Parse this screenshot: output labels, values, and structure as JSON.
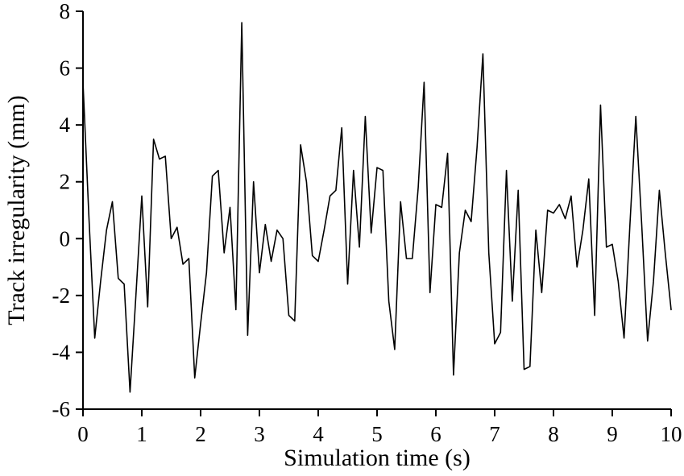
{
  "chart_data": {
    "type": "line",
    "title": "",
    "xlabel": "Simulation time (s)",
    "ylabel": "Track irregularity (mm)",
    "xlim": [
      0,
      10
    ],
    "ylim": [
      -6,
      8
    ],
    "xticks": [
      0,
      1,
      2,
      3,
      4,
      5,
      6,
      7,
      8,
      9,
      10
    ],
    "yticks": [
      -6,
      -4,
      -2,
      0,
      2,
      4,
      6,
      8
    ],
    "grid": false,
    "legend": null,
    "line_color": "#000000",
    "background_color": "#ffffff",
    "series": [
      {
        "name": "track-irregularity",
        "x_start": 0,
        "x_step": 0.1,
        "values": [
          5.5,
          0.8,
          -3.5,
          -1.5,
          0.3,
          1.3,
          -1.4,
          -1.6,
          -5.4,
          -2.0,
          1.5,
          -2.4,
          3.5,
          2.8,
          2.9,
          0.0,
          0.4,
          -0.9,
          -0.7,
          -4.9,
          -3.0,
          -1.2,
          2.2,
          2.4,
          -0.5,
          1.1,
          -2.5,
          7.6,
          -3.4,
          2.0,
          -1.2,
          0.5,
          -0.8,
          0.3,
          0.0,
          -2.7,
          -2.9,
          3.3,
          2.0,
          -0.6,
          -0.8,
          0.3,
          1.5,
          1.7,
          3.9,
          -1.6,
          2.4,
          -0.3,
          4.3,
          0.2,
          2.5,
          2.4,
          -2.2,
          -3.9,
          1.3,
          -0.7,
          -0.7,
          1.8,
          5.5,
          -1.9,
          1.2,
          1.1,
          3.0,
          -4.8,
          -0.5,
          1.0,
          0.6,
          3.2,
          6.5,
          -0.5,
          -3.7,
          -3.3,
          2.4,
          -2.2,
          1.7,
          -4.6,
          -4.5,
          0.3,
          -1.9,
          1.0,
          0.9,
          1.2,
          0.7,
          1.5,
          -1.0,
          0.3,
          2.1,
          -2.7,
          4.7,
          -0.3,
          -0.2,
          -1.5,
          -3.5,
          0.5,
          4.3,
          0.5,
          -3.6,
          -1.5,
          1.7,
          -0.5,
          -2.5
        ]
      }
    ]
  }
}
